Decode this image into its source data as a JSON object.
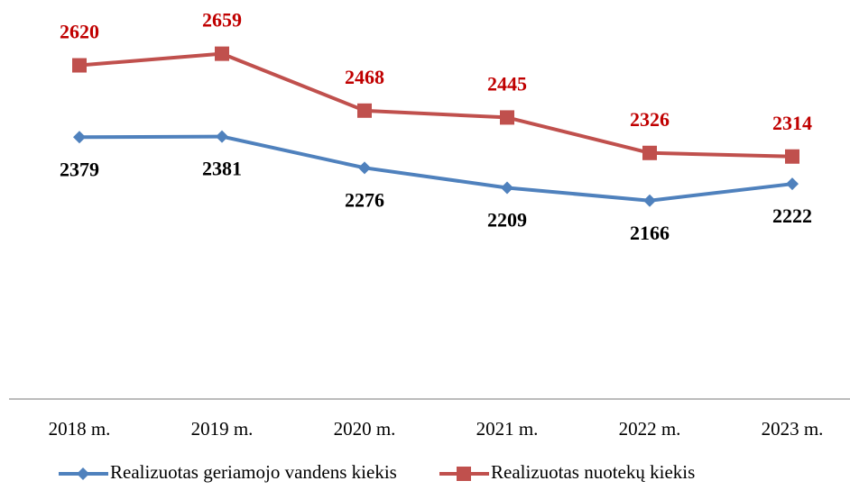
{
  "chart_data": {
    "type": "line",
    "categories": [
      "2018 m.",
      "2019 m.",
      "2020 m.",
      "2021 m.",
      "2022 m.",
      "2023 m."
    ],
    "series": [
      {
        "name": "Realizuotas geriamojo vandens kiekis",
        "color": "#4f81bd",
        "label_color": "#000000",
        "marker": "diamond",
        "values": [
          2379,
          2381,
          2276,
          2209,
          2166,
          2222
        ]
      },
      {
        "name": "Realizuotas nuotekų kiekis",
        "color": "#c0504d",
        "label_color": "#c00000",
        "marker": "square",
        "values": [
          2620,
          2659,
          2468,
          2445,
          2326,
          2314
        ]
      }
    ],
    "ylim": [
      1500,
      2800
    ],
    "grid": false,
    "legend": "bottom"
  }
}
